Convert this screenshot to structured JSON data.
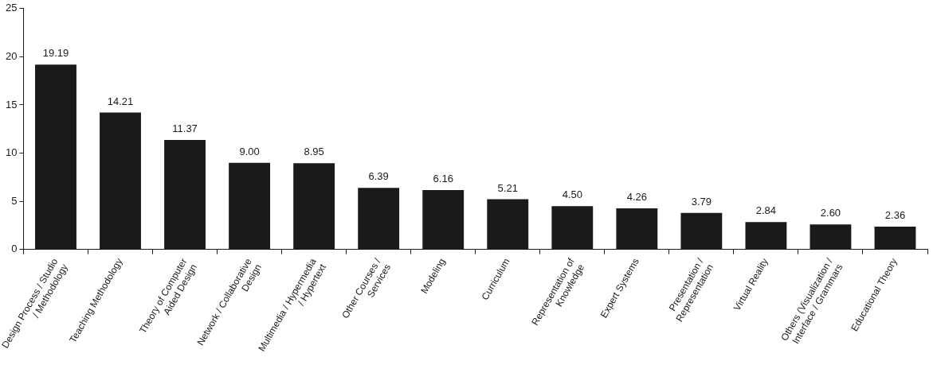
{
  "chart_data": {
    "type": "bar",
    "categories": [
      "Design Process / Studio / Methodology",
      "Teaching Methodology",
      "Theory of Computer Aided Design",
      "Network / Collaborative Design",
      "Multimedia / Hypermedia / Hypertext",
      "Other Courses / Services",
      "Modeling",
      "Curriculum",
      "Representation of Knowledge",
      "Expert Systems",
      "Presentation / Representation",
      "Virtual Reality",
      "Others (Visualization / Interface / Grammars",
      "Educational Theory"
    ],
    "values": [
      19.19,
      14.21,
      11.37,
      9.0,
      8.95,
      6.39,
      6.16,
      5.21,
      4.5,
      4.26,
      3.79,
      2.84,
      2.6,
      2.36
    ],
    "value_labels": [
      "19.19",
      "14.21",
      "11.37",
      "9.00",
      "8.95",
      "6.39",
      "6.16",
      "5.21",
      "4.50",
      "4.26",
      "3.79",
      "2.84",
      "2.60",
      "2.36"
    ],
    "color": "#1a1a1a",
    "ylim": [
      0,
      25
    ],
    "yticks": [
      0,
      5,
      10,
      15,
      20,
      25
    ],
    "grid": false,
    "data_labels": true
  }
}
